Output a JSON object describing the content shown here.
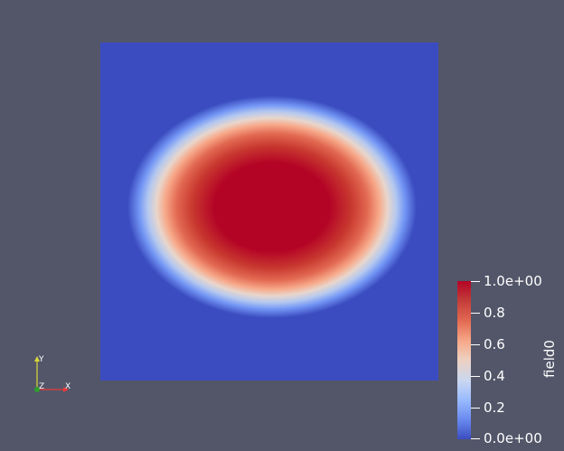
{
  "view": {
    "background_color": "#535669",
    "dataset_background_color": "#3b4cc0"
  },
  "field": {
    "name": "field0",
    "colormap": "Cool to Warm",
    "range": [
      0.0,
      1.0
    ],
    "blob_peak_value": 1.0,
    "blob_peak_color": "#b40426"
  },
  "colorbar": {
    "title": "field0",
    "tick_labels": [
      "1.0e+00",
      "0.8",
      "0.6",
      "0.4",
      "0.2",
      "0.0e+00"
    ]
  },
  "orientation_axes": {
    "y_label": "Y",
    "z_label": "Z",
    "x_label": "X",
    "x_color": "#e83a3a",
    "y_color": "#d8d83a",
    "z_color": "#2e9e2e"
  }
}
